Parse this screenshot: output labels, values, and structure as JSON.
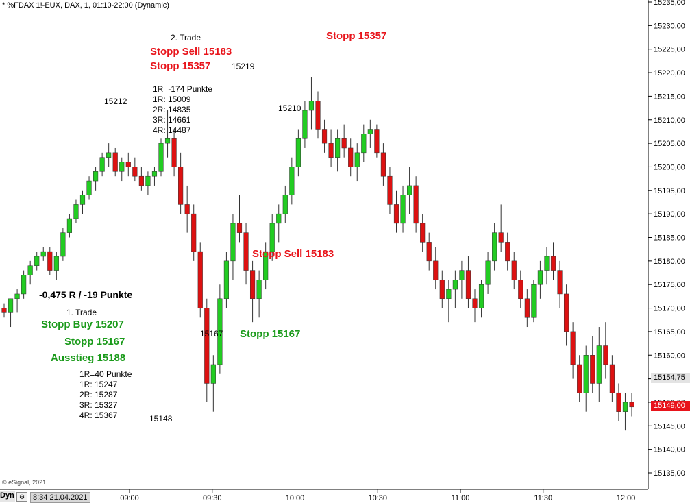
{
  "header": {
    "title": "* %FDAX 1!-EUX, DAX, 1, 01:10-22:00 (Dynamic)"
  },
  "footer": {
    "copyright": "© eSignal, 2021",
    "dyn_label": "Dyn",
    "datetime": "8:34 21.04.2021"
  },
  "price_tags": {
    "reference": "15154,75",
    "last": "15149,00"
  },
  "colors": {
    "up": "#22cc22",
    "down": "#dd1111",
    "red_text": "#e8141b",
    "green_text": "#1a9a1a"
  },
  "annotations": {
    "trade2_title": "2. Trade",
    "trade2_sell": "Stopp Sell 15183",
    "trade2_stop": "Stopp 15357",
    "trade2_stop_top": "Stopp 15357",
    "trade2_lines": [
      "1R=-174 Punkte",
      "1R: 15009",
      "2R: 14835",
      "3R: 14661",
      "4R: 14487"
    ],
    "sell_mid": "Stopp Sell 15183",
    "result": "-0,475 R / -19 Punkte",
    "trade1_title": "1. Trade",
    "trade1_buy": "Stopp Buy 15207",
    "trade1_stop": "Stopp 15167",
    "trade1_exit": "Ausstieg 15188",
    "trade1_lines": [
      "1R=40 Punkte",
      "1R: 15247",
      "2R: 15287",
      "3R: 15327",
      "4R: 15367"
    ],
    "stop_mid": "Stopp 15167",
    "labels": {
      "l15212": "15212",
      "l15219": "15219",
      "l15210": "15210",
      "l15167": "15167",
      "l15148": "15148"
    }
  },
  "chart_data": {
    "type": "candlestick",
    "y_axis": {
      "min": 15135,
      "max": 15235,
      "step": 5,
      "decimal_sep": ","
    },
    "x_ticks": [
      "09:00",
      "09:30",
      "10:00",
      "10:30",
      "11:00",
      "11:30",
      "12:00"
    ],
    "candles": [
      [
        15170,
        15171,
        15168,
        15169
      ],
      [
        15169,
        15172,
        15166,
        15172
      ],
      [
        15172,
        15174,
        15169,
        15173
      ],
      [
        15173,
        15178,
        15172,
        15177
      ],
      [
        15177,
        15180,
        15175,
        15179
      ],
      [
        15179,
        15182,
        15178,
        15181
      ],
      [
        15181,
        15183,
        15180,
        15182
      ],
      [
        15182,
        15183,
        15177,
        15178
      ],
      [
        15178,
        15182,
        15176,
        15181
      ],
      [
        15181,
        15187,
        15180,
        15186
      ],
      [
        15186,
        15190,
        15185,
        15189
      ],
      [
        15189,
        15193,
        15188,
        15192
      ],
      [
        15192,
        15195,
        15190,
        15194
      ],
      [
        15194,
        15198,
        15193,
        15197
      ],
      [
        15197,
        15200,
        15195,
        15199
      ],
      [
        15199,
        15203,
        15198,
        15202
      ],
      [
        15202,
        15205,
        15200,
        15203
      ],
      [
        15203,
        15204,
        15198,
        15199
      ],
      [
        15199,
        15202,
        15197,
        15201
      ],
      [
        15201,
        15203,
        15198,
        15200
      ],
      [
        15200,
        15202,
        15197,
        15198
      ],
      [
        15198,
        15200,
        15195,
        15196
      ],
      [
        15196,
        15199,
        15194,
        15198
      ],
      [
        15198,
        15200,
        15196,
        15199
      ],
      [
        15199,
        15206,
        15198,
        15205
      ],
      [
        15205,
        15212,
        15202,
        15206
      ],
      [
        15206,
        15208,
        15198,
        15200
      ],
      [
        15200,
        15203,
        15190,
        15192
      ],
      [
        15192,
        15196,
        15186,
        15190
      ],
      [
        15190,
        15192,
        15180,
        15182
      ],
      [
        15182,
        15184,
        15168,
        15170
      ],
      [
        15170,
        15172,
        15150,
        15154
      ],
      [
        15154,
        15160,
        15148,
        15158
      ],
      [
        15158,
        15175,
        15156,
        15172
      ],
      [
        15172,
        15182,
        15170,
        15180
      ],
      [
        15180,
        15190,
        15176,
        15188
      ],
      [
        15188,
        15194,
        15184,
        15186
      ],
      [
        15186,
        15188,
        15175,
        15178
      ],
      [
        15178,
        15180,
        15167,
        15172
      ],
      [
        15172,
        15178,
        15168,
        15176
      ],
      [
        15176,
        15184,
        15174,
        15182
      ],
      [
        15182,
        15190,
        15180,
        15188
      ],
      [
        15188,
        15192,
        15184,
        15190
      ],
      [
        15190,
        15196,
        15188,
        15194
      ],
      [
        15194,
        15202,
        15192,
        15200
      ],
      [
        15200,
        15208,
        15198,
        15206
      ],
      [
        15206,
        15214,
        15204,
        15212
      ],
      [
        15212,
        15219,
        15208,
        15214
      ],
      [
        15214,
        15216,
        15206,
        15208
      ],
      [
        15208,
        15210,
        15203,
        15205
      ],
      [
        15205,
        15208,
        15200,
        15202
      ],
      [
        15202,
        15208,
        15199,
        15206
      ],
      [
        15206,
        15209,
        15202,
        15204
      ],
      [
        15204,
        15206,
        15198,
        15200
      ],
      [
        15200,
        15205,
        15197,
        15203
      ],
      [
        15203,
        15209,
        15201,
        15207
      ],
      [
        15207,
        15210,
        15204,
        15208
      ],
      [
        15208,
        15209,
        15202,
        15203
      ],
      [
        15203,
        15205,
        15196,
        15198
      ],
      [
        15198,
        15200,
        15190,
        15192
      ],
      [
        15192,
        15195,
        15186,
        15188
      ],
      [
        15188,
        15196,
        15186,
        15194
      ],
      [
        15194,
        15200,
        15190,
        15196
      ],
      [
        15196,
        15198,
        15186,
        15188
      ],
      [
        15188,
        15190,
        15182,
        15184
      ],
      [
        15184,
        15186,
        15178,
        15180
      ],
      [
        15180,
        15183,
        15174,
        15176
      ],
      [
        15176,
        15178,
        15170,
        15172
      ],
      [
        15172,
        15176,
        15167,
        15174
      ],
      [
        15174,
        15178,
        15170,
        15176
      ],
      [
        15176,
        15180,
        15172,
        15178
      ],
      [
        15178,
        15181,
        15170,
        15172
      ],
      [
        15172,
        15174,
        15167,
        15170
      ],
      [
        15170,
        15176,
        15168,
        15175
      ],
      [
        15175,
        15182,
        15173,
        15180
      ],
      [
        15180,
        15188,
        15178,
        15186
      ],
      [
        15186,
        15192,
        15182,
        15184
      ],
      [
        15184,
        15186,
        15178,
        15180
      ],
      [
        15180,
        15182,
        15174,
        15176
      ],
      [
        15176,
        15178,
        15170,
        15172
      ],
      [
        15172,
        15174,
        15166,
        15168
      ],
      [
        15168,
        15176,
        15167,
        15175
      ],
      [
        15175,
        15180,
        15172,
        15178
      ],
      [
        15178,
        15183,
        15175,
        15181
      ],
      [
        15181,
        15184,
        15176,
        15178
      ],
      [
        15178,
        15180,
        15170,
        15173
      ],
      [
        15173,
        15175,
        15162,
        15165
      ],
      [
        15165,
        15167,
        15155,
        15158
      ],
      [
        15158,
        15160,
        15150,
        15152
      ],
      [
        15152,
        15162,
        15148,
        15160
      ],
      [
        15160,
        15164,
        15152,
        15154
      ],
      [
        15154,
        15166,
        15150,
        15162
      ],
      [
        15162,
        15167,
        15155,
        15158
      ],
      [
        15158,
        15160,
        15150,
        15152
      ],
      [
        15152,
        15154,
        15146,
        15148
      ],
      [
        15148,
        15152,
        15144,
        15150
      ],
      [
        15150,
        15152,
        15147,
        15149
      ]
    ]
  }
}
